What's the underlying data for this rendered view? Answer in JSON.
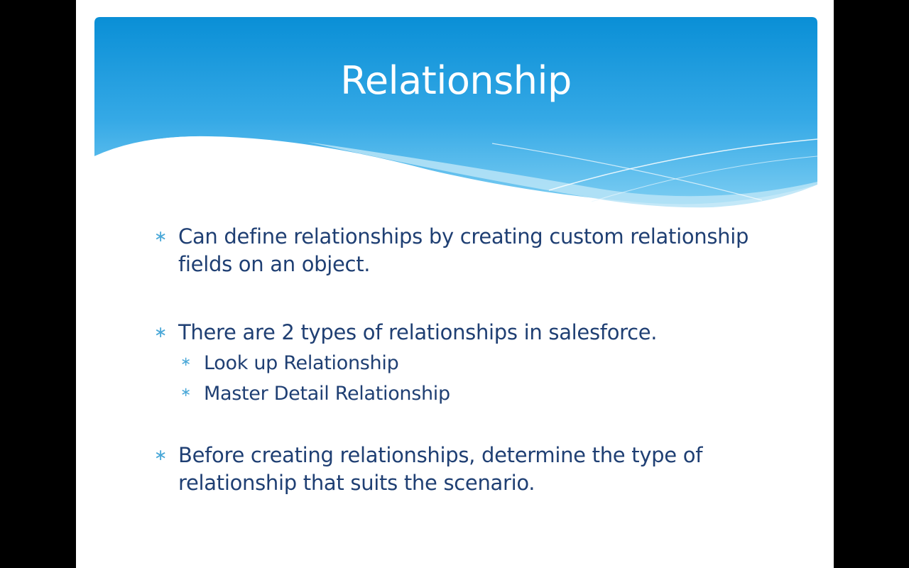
{
  "slide": {
    "title": "Relationship",
    "bullets": [
      {
        "text": "Can define relationships by creating custom relationship fields on an object."
      },
      {
        "text": "There are 2 types of relationships in salesforce."
      },
      {
        "text": "Before creating relationships, determine the type of relationship that suits the scenario."
      }
    ],
    "sub_bullets": [
      {
        "text": "Look up Relationship"
      },
      {
        "text": "Master Detail Relationship"
      }
    ]
  },
  "colors": {
    "header_top": "#0a93d8",
    "header_bottom": "#6ec6ef",
    "wave_light": "#bfe6f8",
    "text": "#1f3f73",
    "bullet_star": "#4aa8d8",
    "background": "#000000"
  }
}
